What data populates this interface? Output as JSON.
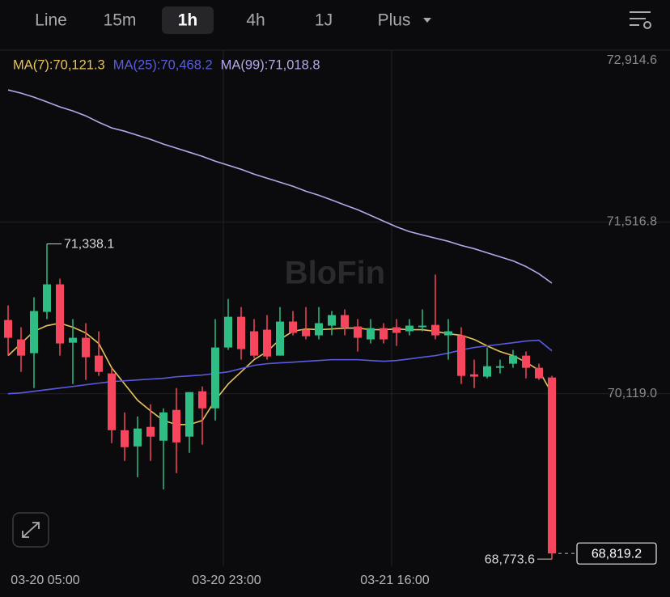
{
  "toolbar": {
    "tabs": [
      "Line",
      "15m",
      "1h",
      "4h",
      "1J",
      "Plus"
    ],
    "selected": 2
  },
  "chart_data": {
    "type": "candlestick",
    "watermark": "BloFin",
    "categories": [
      null,
      null,
      null,
      "03-20 05:00",
      null,
      null,
      null,
      null,
      null,
      null,
      null,
      null,
      null,
      null,
      null,
      null,
      null,
      "03-20 23:00",
      null,
      null,
      null,
      null,
      null,
      null,
      null,
      null,
      null,
      null,
      null,
      null,
      "03-21 16:00",
      null,
      null,
      null,
      null,
      null,
      null,
      null,
      null,
      null,
      null,
      null,
      null
    ],
    "open": [
      70719,
      70561,
      70449,
      70785,
      71009,
      70534,
      70574,
      70429,
      70284,
      69822,
      69690,
      69849,
      69737,
      69987,
      69770,
      70139,
      70000,
      70495,
      70745,
      70627,
      70640,
      70429,
      70706,
      70640,
      70594,
      70673,
      70759,
      70666,
      70561,
      70653,
      70660,
      70627,
      70660,
      70679,
      70594,
      70594,
      70277,
      70258,
      70330,
      70363,
      70429,
      70330,
      70251
    ],
    "high": [
      70838,
      70660,
      70904,
      71338.1,
      71055,
      70726,
      70693,
      70627,
      70330,
      69967,
      69934,
      70033,
      70000,
      70165,
      70132,
      70178,
      70726,
      70890,
      70824,
      70726,
      70759,
      70824,
      70792,
      70824,
      70824,
      70792,
      70805,
      70726,
      70726,
      70693,
      70726,
      70726,
      70805,
      71088,
      70726,
      70660,
      70396,
      70495,
      70396,
      70475,
      70462,
      70363,
      70264
    ],
    "low": [
      70429,
      70297,
      70165,
      70726,
      70429,
      70198,
      70231,
      70264,
      69717,
      69572,
      69440,
      69572,
      69341,
      69473,
      69638,
      69704,
      69901,
      70475,
      70396,
      70409,
      70396,
      70429,
      70594,
      70561,
      70561,
      70594,
      70594,
      70462,
      70528,
      70528,
      70508,
      70594,
      70627,
      70561,
      70396,
      70198,
      70165,
      70244,
      70284,
      70330,
      70244,
      70231,
      68773.6
    ],
    "close": [
      70574,
      70429,
      70792,
      71009,
      70528,
      70574,
      70416,
      70297,
      69822,
      69684,
      69836,
      69770,
      69967,
      69723,
      70132,
      70000,
      70495,
      70745,
      70482,
      70429,
      70422,
      70706,
      70614,
      70587,
      70693,
      70759,
      70660,
      70574,
      70653,
      70561,
      70614,
      70673,
      70673,
      70594,
      70627,
      70264,
      70258,
      70343,
      70343,
      70429,
      70330,
      70244,
      68819.2
    ],
    "up_color": "#2ebd85",
    "down_color": "#f6465d",
    "series": [
      {
        "name": "MA(7):70,121.3",
        "color": "#e8c35a",
        "values": [
          70429,
          70528,
          70627,
          70673,
          70693,
          70660,
          70614,
          70528,
          70330,
          70198,
          70066,
          69980,
          69901,
          69868,
          69868,
          69901,
          70066,
          70198,
          70297,
          70396,
          70462,
          70561,
          70627,
          70646,
          70640,
          70646,
          70653,
          70653,
          70640,
          70640,
          70646,
          70640,
          70640,
          70627,
          70607,
          70594,
          70561,
          70508,
          70462,
          70429,
          70376,
          70310,
          70121.3
        ]
      },
      {
        "name": "MA(25):70,468.2",
        "color": "#5a5ce0",
        "values": [
          70119,
          70126,
          70139,
          70152,
          70165,
          70178,
          70192,
          70205,
          70218,
          70224,
          70231,
          70238,
          70244,
          70257,
          70264,
          70271,
          70284,
          70297,
          70323,
          70350,
          70363,
          70370,
          70376,
          70383,
          70389,
          70396,
          70396,
          70396,
          70389,
          70383,
          70389,
          70402,
          70416,
          70429,
          70449,
          70475,
          70495,
          70508,
          70521,
          70534,
          70548,
          70554,
          70468.2
        ]
      },
      {
        "name": "MA(99):71,018.8",
        "color": "#b3a8e8",
        "values": [
          72591,
          72565,
          72532,
          72493,
          72453,
          72420,
          72380,
          72328,
          72282,
          72255,
          72222,
          72189,
          72150,
          72117,
          72084,
          72051,
          72011,
          71978,
          71945,
          71906,
          71873,
          71840,
          71807,
          71767,
          71734,
          71695,
          71655,
          71616,
          71570,
          71523,
          71477,
          71438,
          71411,
          71385,
          71359,
          71326,
          71299,
          71266,
          71233,
          71200,
          71154,
          71095,
          71018.8
        ]
      }
    ],
    "ylim": [
      68715,
      72914.6
    ],
    "yticks": [
      {
        "value": 70119.0,
        "label": "70,119.0"
      },
      {
        "value": 71516.8,
        "label": "71,516.8"
      },
      {
        "value": 72914.6,
        "label": "72,914.6"
      }
    ],
    "grid": true,
    "high_label": "71,338.1",
    "low_label": "68,773.6",
    "last_label": "68,819.2"
  }
}
